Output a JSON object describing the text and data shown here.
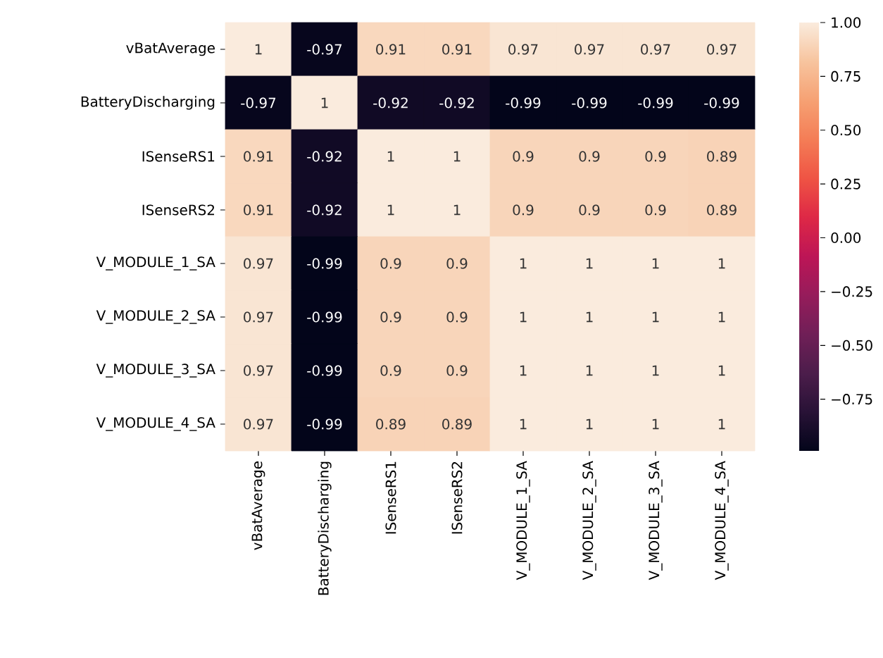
{
  "chart_data": {
    "type": "heatmap",
    "categories": [
      "vBatAverage",
      "BatteryDischarging",
      "ISenseRS1",
      "ISenseRS2",
      "V_MODULE_1_SA",
      "V_MODULE_2_SA",
      "V_MODULE_3_SA",
      "V_MODULE_4_SA"
    ],
    "y_categories": [
      "vBatAverage",
      "BatteryDischarging",
      "ISenseRS1",
      "ISenseRS2",
      "V_MODULE_1_SA",
      "V_MODULE_2_SA",
      "V_MODULE_3_SA",
      "V_MODULE_4_SA"
    ],
    "cells": [
      [
        1,
        -0.97,
        0.91,
        0.91,
        0.97,
        0.97,
        0.97,
        0.97
      ],
      [
        -0.97,
        1,
        -0.92,
        -0.92,
        -0.99,
        -0.99,
        -0.99,
        -0.99
      ],
      [
        0.91,
        -0.92,
        1,
        1,
        0.9,
        0.9,
        0.9,
        0.89
      ],
      [
        0.91,
        -0.92,
        1,
        1,
        0.9,
        0.9,
        0.9,
        0.89
      ],
      [
        0.97,
        -0.99,
        0.9,
        0.9,
        1,
        1,
        1,
        1
      ],
      [
        0.97,
        -0.99,
        0.9,
        0.9,
        1,
        1,
        1,
        1
      ],
      [
        0.97,
        -0.99,
        0.9,
        0.9,
        1,
        1,
        1,
        1
      ],
      [
        0.97,
        -0.99,
        0.89,
        0.89,
        1,
        1,
        1,
        1
      ]
    ],
    "clim": [
      -0.99,
      1
    ],
    "cticks": [
      {
        "value": 1,
        "label": "1.00"
      },
      {
        "value": 0.75,
        "label": "0.75"
      },
      {
        "value": 0.5,
        "label": "0.50"
      },
      {
        "value": 0.25,
        "label": "0.25"
      },
      {
        "value": 0,
        "label": "0.00"
      },
      {
        "value": -0.25,
        "label": "−0.25"
      },
      {
        "value": -0.5,
        "label": "−0.50"
      },
      {
        "value": -0.75,
        "label": "−0.75"
      }
    ],
    "data_labels": true
  }
}
